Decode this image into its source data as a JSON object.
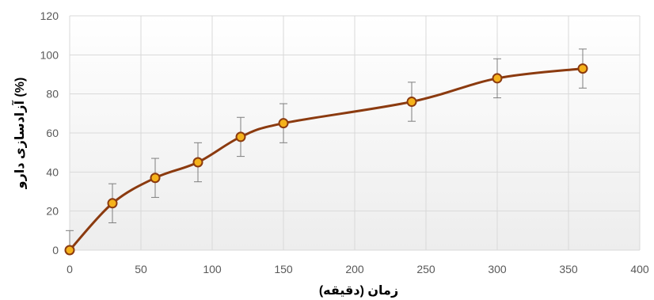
{
  "chart_data": {
    "type": "line",
    "xlabel": "زمان (دقیقه)",
    "ylabel": "آزادسازی دارو (%)",
    "xlim": [
      0,
      400
    ],
    "ylim": [
      0,
      120
    ],
    "x_ticks": [
      0,
      50,
      100,
      150,
      200,
      250,
      300,
      350,
      400
    ],
    "y_ticks": [
      0,
      20,
      40,
      60,
      80,
      100,
      120
    ],
    "grid": true,
    "legend": "none",
    "smoothed": true,
    "series": [
      {
        "x": [
          0,
          30,
          60,
          90,
          120,
          150,
          240,
          300,
          360
        ],
        "y": [
          0,
          24,
          37,
          45,
          58,
          65,
          76,
          88,
          93
        ],
        "error": [
          10,
          10,
          10,
          10,
          10,
          10,
          10,
          10,
          10
        ]
      }
    ],
    "colors": {
      "line": "#8B3A0F",
      "marker_fill": "#F5B21B",
      "marker_edge": "#8B3A0F",
      "errorbar": "#7F7F7F",
      "grid": "#D9D9D9",
      "plot_bg_top": "#FFFFFF",
      "plot_bg_bottom": "#EDEDED"
    }
  }
}
